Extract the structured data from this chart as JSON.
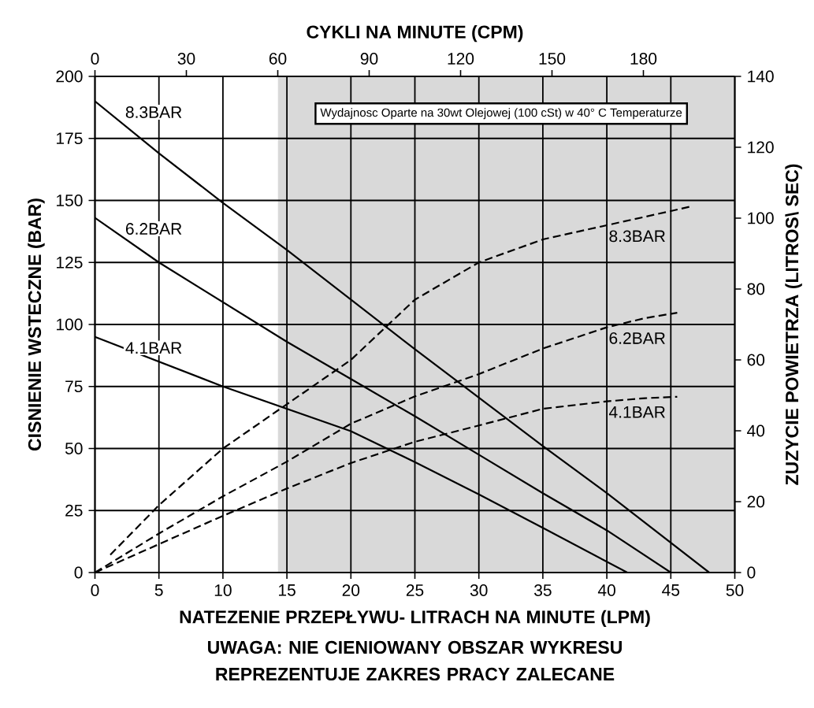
{
  "chart_data": {
    "type": "line",
    "xlabel": "NATEZENIE PRZEPŁYWU- LITRACH NA MINUTE (LPM)",
    "ylabel": "CISNIENIE WSTECZNE (BAR)",
    "y2label": "ZUZYCIE POWIETRZA (LITROS\\ SEC)",
    "x2label": "CYKLI NA MINUTE (CPM)",
    "xlim": [
      0,
      50
    ],
    "xticks": [
      0,
      5,
      10,
      15,
      20,
      25,
      30,
      35,
      40,
      45,
      50
    ],
    "ylim": [
      0,
      200
    ],
    "yticks": [
      0,
      25,
      50,
      75,
      100,
      125,
      150,
      175,
      200
    ],
    "y2lim": [
      0,
      140
    ],
    "y2ticks": [
      0,
      20,
      40,
      60,
      80,
      100,
      120,
      140
    ],
    "x2lim": [
      0,
      210
    ],
    "x2ticks": [
      0,
      30,
      60,
      90,
      120,
      150,
      180
    ],
    "grid": true,
    "bands": [
      {
        "axis": "x",
        "from": 14.3,
        "to": 50,
        "color": "#d9d9d9"
      }
    ],
    "annotations": [
      "Wydajnosc Oparte na 30wt Olejowej (100 cSt) w 40° C Temperaturze",
      "UWAGA: NIE CIENIOWANY OBSZAR WYKRESU REPREZENTUJE ZAKRES PRACY ZALECANE"
    ],
    "series": [
      {
        "name": "8.3BAR",
        "axis": "y",
        "line_style": "solid",
        "color": "#000000",
        "x": [
          0,
          5,
          10,
          15,
          20,
          25,
          30,
          35,
          40,
          48
        ],
        "values": [
          190,
          169,
          149,
          130,
          110,
          90,
          70.5,
          51,
          32,
          0
        ]
      },
      {
        "name": "6.2BAR",
        "axis": "y",
        "line_style": "solid",
        "color": "#000000",
        "x": [
          0,
          5,
          10,
          15,
          20,
          25,
          30,
          35,
          40,
          45
        ],
        "values": [
          143,
          125,
          109,
          93,
          78,
          63,
          47.5,
          32,
          17,
          0
        ]
      },
      {
        "name": "4.1BAR",
        "axis": "y",
        "line_style": "solid",
        "color": "#000000",
        "x": [
          0,
          5,
          10,
          15,
          20,
          25,
          30,
          35,
          41.6
        ],
        "values": [
          95,
          85,
          75,
          66,
          57,
          44.5,
          31.5,
          18,
          0
        ]
      },
      {
        "name": "8.3BAR",
        "axis": "y2",
        "line_style": "dashed",
        "color": "#000000",
        "x": [
          1.2,
          5,
          10,
          15,
          20,
          25,
          30,
          35,
          40,
          45,
          46.7
        ],
        "values": [
          5,
          19,
          35,
          47.5,
          60,
          77,
          87.5,
          94,
          98,
          102,
          103.4
        ]
      },
      {
        "name": "6.2BAR",
        "axis": "y2",
        "line_style": "dashed",
        "color": "#000000",
        "x": [
          0,
          5,
          10,
          15,
          20,
          25,
          30,
          35,
          40,
          43,
          45.5
        ],
        "values": [
          0,
          11,
          21.5,
          31.3,
          42,
          49.7,
          56,
          63.2,
          69.2,
          71.8,
          73.3
        ]
      },
      {
        "name": "4.1BAR",
        "axis": "y2",
        "line_style": "dashed",
        "color": "#000000",
        "x": [
          0,
          5,
          10,
          15,
          20,
          25,
          30,
          35,
          40,
          43,
          45.5
        ],
        "values": [
          0,
          8,
          16,
          23.7,
          30.9,
          36.9,
          41.5,
          46.2,
          48.3,
          49.2,
          49.6
        ]
      }
    ]
  }
}
